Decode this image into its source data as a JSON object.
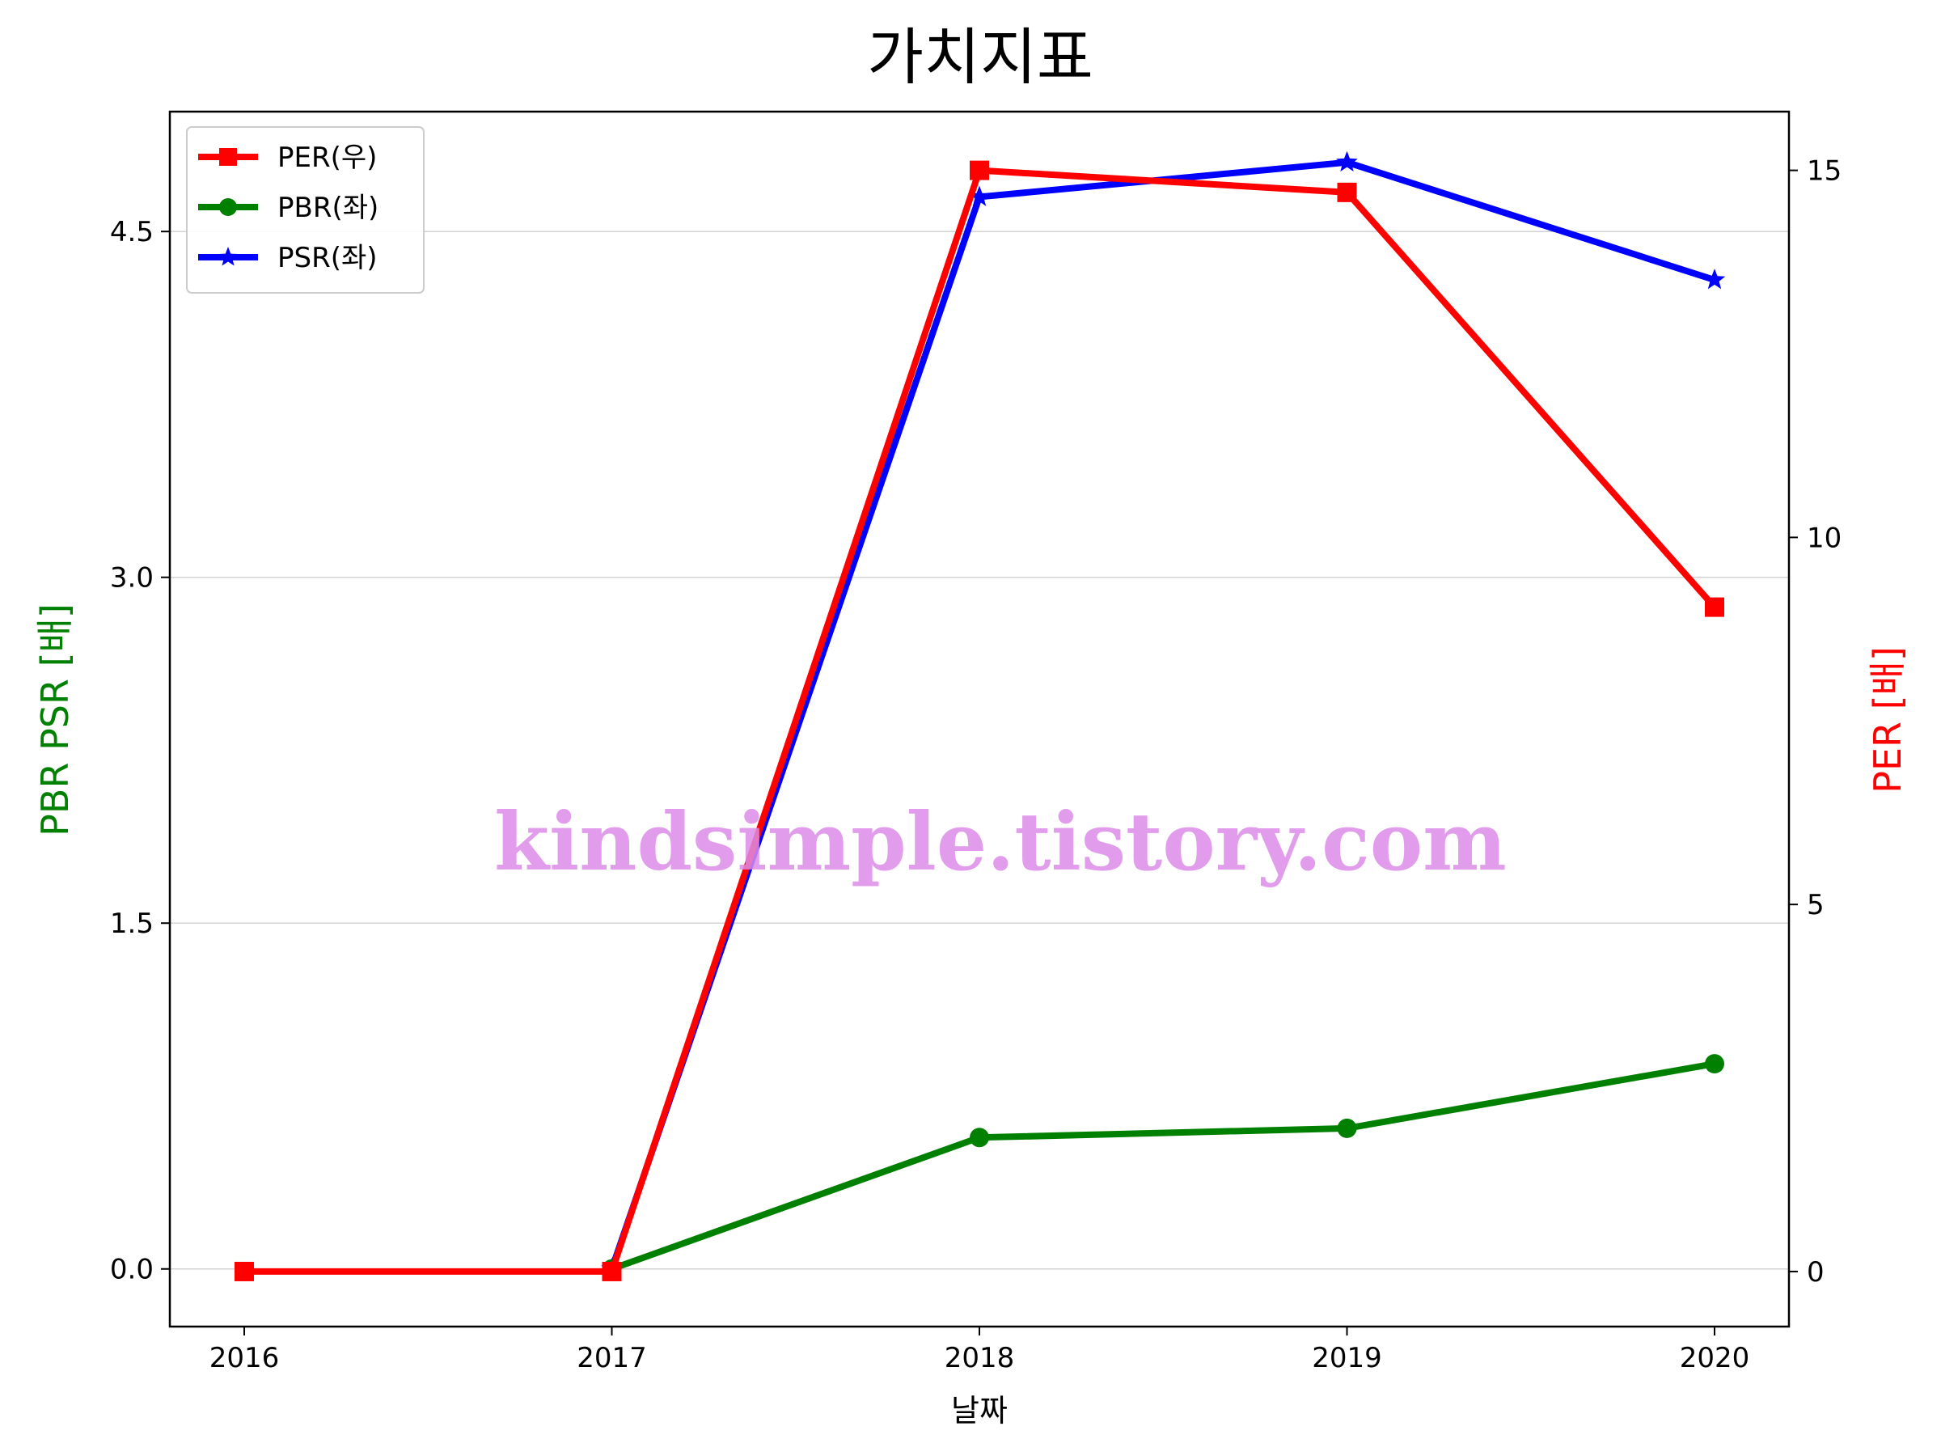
{
  "chart_data": {
    "type": "line",
    "title": "가치지표",
    "xlabel": "날짜",
    "ylabel_left": "PBR PSR [배]",
    "ylabel_right": "PER [배]",
    "x": [
      "2016",
      "2017",
      "2018",
      "2019",
      "2020"
    ],
    "ylim_left": [
      -0.25,
      5.02
    ],
    "ylim_right": [
      -0.75,
      15.8
    ],
    "yticks_left": [
      "0.0",
      "1.5",
      "3.0",
      "4.5"
    ],
    "yticks_right": [
      "0",
      "5",
      "10",
      "15"
    ],
    "grid": "horizontal",
    "legend_position": "top-left",
    "series": [
      {
        "name": "PER(우)",
        "axis": "right",
        "color": "#ff0000",
        "marker": "square",
        "values": [
          0,
          0,
          15.0,
          14.7,
          9.05
        ]
      },
      {
        "name": "PBR(좌)",
        "axis": "left",
        "color": "#008000",
        "marker": "circle",
        "values": [
          null,
          0,
          0.57,
          0.61,
          0.89
        ]
      },
      {
        "name": "PSR(좌)",
        "axis": "left",
        "color": "#0000ff",
        "marker": "star",
        "values": [
          null,
          0,
          4.65,
          4.8,
          4.29
        ]
      }
    ]
  },
  "watermark": "kindsimple.tistory.com"
}
